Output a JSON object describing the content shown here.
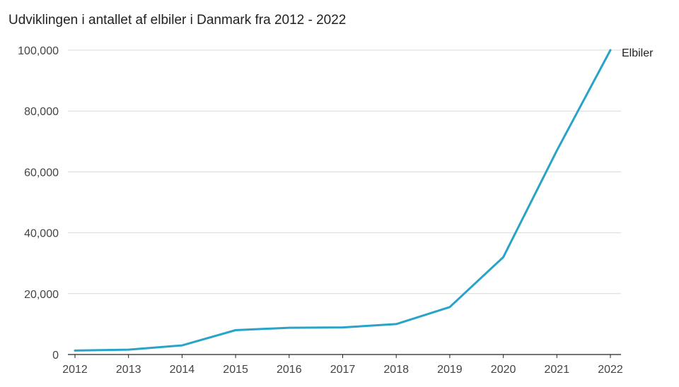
{
  "chart_data": {
    "type": "line",
    "title": "Udviklingen i antallet af elbiler i Danmark fra 2012 - 2022",
    "x": [
      "2012",
      "2013",
      "2014",
      "2015",
      "2016",
      "2017",
      "2018",
      "2019",
      "2020",
      "2021",
      "2022"
    ],
    "series": [
      {
        "name": "Elbiler",
        "values": [
          1300,
          1600,
          3000,
          8000,
          8800,
          8900,
          10000,
          15600,
          32000,
          67000,
          100000
        ],
        "color": "#2aa3c9"
      }
    ],
    "xlabel": "",
    "ylabel": "",
    "ylim": [
      0,
      100000
    ],
    "yticks": [
      0,
      20000,
      40000,
      60000,
      80000,
      100000
    ],
    "ytick_labels": [
      "0",
      "20,000",
      "40,000",
      "60,000",
      "80,000",
      "100,000"
    ],
    "grid": true,
    "legend": "end-of-line label"
  }
}
